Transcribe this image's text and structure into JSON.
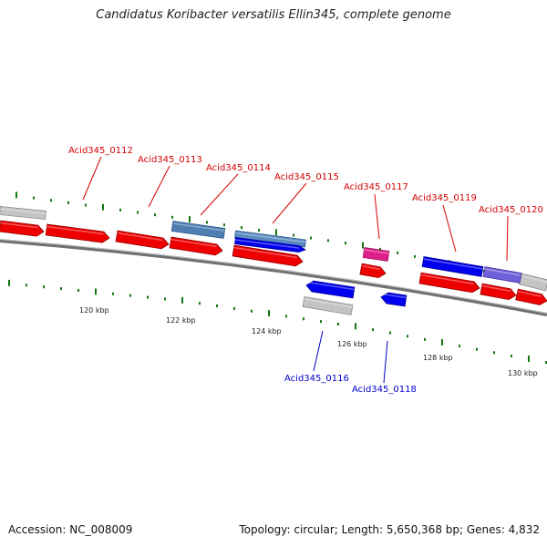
{
  "title": "Candidatus Koribacter versatilis Ellin345, complete genome",
  "accession": "Accession: NC_008009",
  "topology": "Topology: circular; Length: 5,650,368 bp; Genes: 4,832",
  "colors": {
    "forward_label": "#d40000",
    "reverse_label": "#0000cc",
    "tick": "#127812",
    "backbone": "#808080"
  },
  "scale": {
    "unit": "kbp",
    "labels": [
      {
        "value": 120,
        "text": "120 kbp"
      },
      {
        "value": 122,
        "text": "122 kbp"
      },
      {
        "value": 124,
        "text": "124 kbp"
      },
      {
        "value": 126,
        "text": "126 kbp"
      },
      {
        "value": 128,
        "text": "128 kbp"
      },
      {
        "value": 130,
        "text": "130 kbp"
      }
    ]
  },
  "gene_labels": [
    {
      "text": "Acid345_0112",
      "strand": "+"
    },
    {
      "text": "Acid345_0113",
      "strand": "+"
    },
    {
      "text": "Acid345_0114",
      "strand": "+"
    },
    {
      "text": "Acid345_0115",
      "strand": "+"
    },
    {
      "text": "Acid345_0117",
      "strand": "+"
    },
    {
      "text": "Acid345_0119",
      "strand": "+"
    },
    {
      "text": "Acid345_0120",
      "strand": "+"
    },
    {
      "text": "Acid345_0116",
      "strand": "-"
    },
    {
      "text": "Acid345_0118",
      "strand": "-"
    }
  ]
}
